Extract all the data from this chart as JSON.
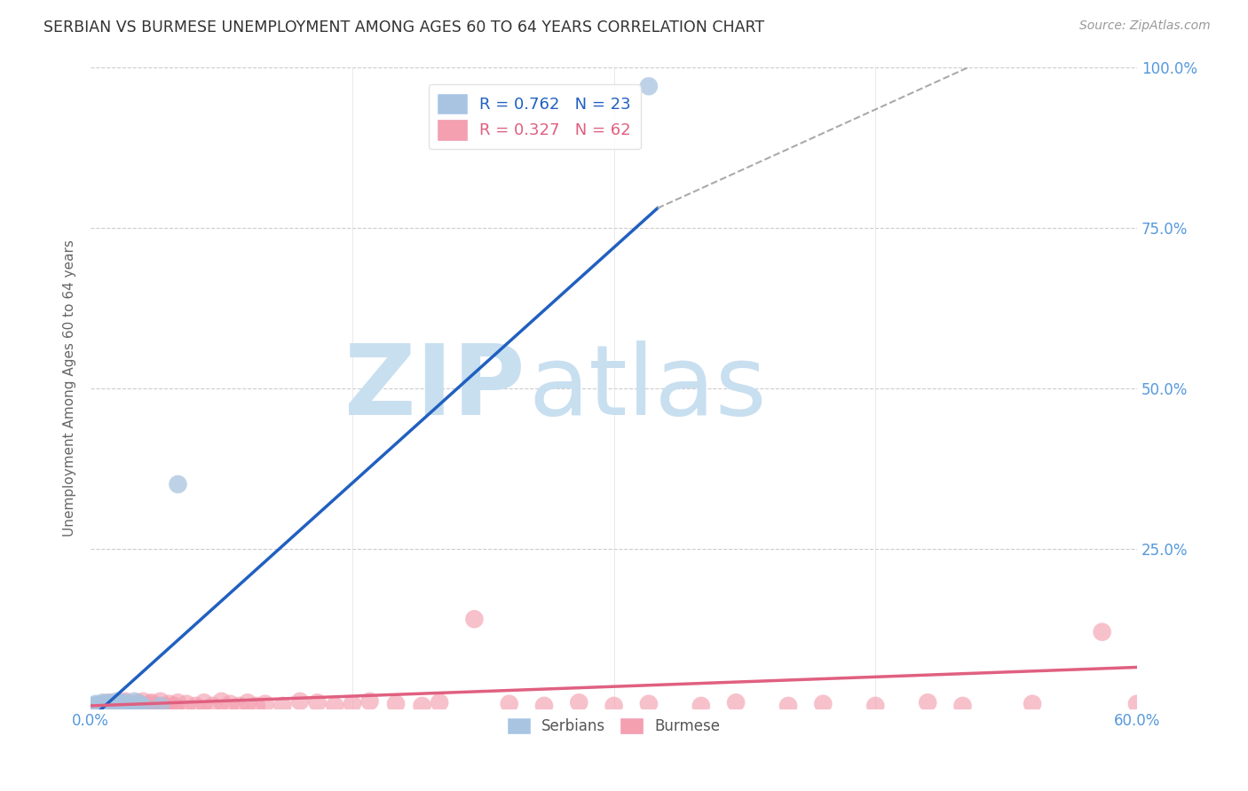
{
  "title": "SERBIAN VS BURMESE UNEMPLOYMENT AMONG AGES 60 TO 64 YEARS CORRELATION CHART",
  "source": "Source: ZipAtlas.com",
  "ylabel": "Unemployment Among Ages 60 to 64 years",
  "xlim": [
    0.0,
    0.6
  ],
  "ylim": [
    0.0,
    1.0
  ],
  "serbian_R": 0.762,
  "serbian_N": 23,
  "burmese_R": 0.327,
  "burmese_N": 62,
  "serbian_color": "#a8c4e0",
  "burmese_color": "#f4a0b0",
  "serbian_line_color": "#2060c0",
  "burmese_line_color": "#e06080",
  "watermark_zip": "ZIP",
  "watermark_atlas": "atlas",
  "watermark_color_zip": "#c8dff0",
  "watermark_color_atlas": "#c8dff0",
  "right_tick_color": "#5599dd",
  "bottom_tick_color": "#5599dd",
  "serbian_scatter_x": [
    0.002,
    0.003,
    0.004,
    0.005,
    0.006,
    0.007,
    0.008,
    0.009,
    0.01,
    0.011,
    0.012,
    0.013,
    0.015,
    0.016,
    0.018,
    0.02,
    0.022,
    0.025,
    0.028,
    0.03,
    0.04,
    0.05,
    0.32
  ],
  "serbian_scatter_y": [
    0.005,
    0.008,
    0.005,
    0.006,
    0.005,
    0.01,
    0.005,
    0.008,
    0.005,
    0.01,
    0.005,
    0.008,
    0.012,
    0.005,
    0.008,
    0.01,
    0.005,
    0.012,
    0.008,
    0.005,
    0.005,
    0.35,
    0.97
  ],
  "burmese_scatter_x": [
    0.002,
    0.003,
    0.005,
    0.007,
    0.009,
    0.01,
    0.012,
    0.014,
    0.015,
    0.017,
    0.018,
    0.02,
    0.022,
    0.024,
    0.025,
    0.027,
    0.028,
    0.03,
    0.032,
    0.034,
    0.035,
    0.038,
    0.04,
    0.042,
    0.045,
    0.048,
    0.05,
    0.055,
    0.06,
    0.065,
    0.07,
    0.075,
    0.08,
    0.085,
    0.09,
    0.095,
    0.1,
    0.11,
    0.12,
    0.13,
    0.14,
    0.15,
    0.16,
    0.175,
    0.19,
    0.2,
    0.22,
    0.24,
    0.26,
    0.28,
    0.3,
    0.32,
    0.35,
    0.37,
    0.4,
    0.42,
    0.45,
    0.48,
    0.5,
    0.54,
    0.58,
    0.6
  ],
  "burmese_scatter_y": [
    0.005,
    0.005,
    0.005,
    0.008,
    0.005,
    0.01,
    0.005,
    0.005,
    0.008,
    0.005,
    0.01,
    0.012,
    0.005,
    0.008,
    0.005,
    0.01,
    0.005,
    0.012,
    0.005,
    0.008,
    0.01,
    0.005,
    0.012,
    0.005,
    0.008,
    0.005,
    0.01,
    0.008,
    0.005,
    0.01,
    0.005,
    0.012,
    0.008,
    0.005,
    0.01,
    0.005,
    0.008,
    0.005,
    0.012,
    0.01,
    0.005,
    0.008,
    0.012,
    0.008,
    0.005,
    0.01,
    0.14,
    0.008,
    0.005,
    0.01,
    0.005,
    0.008,
    0.005,
    0.01,
    0.005,
    0.008,
    0.005,
    0.01,
    0.005,
    0.008,
    0.12,
    0.008
  ],
  "serbian_line_x0": 0.0,
  "serbian_line_y0": -0.015,
  "serbian_line_x1": 0.325,
  "serbian_line_y1": 0.78,
  "serbian_line_ext_x1": 0.52,
  "serbian_line_ext_y1": 1.02,
  "burmese_line_x0": 0.0,
  "burmese_line_y0": 0.005,
  "burmese_line_x1": 0.6,
  "burmese_line_y1": 0.065
}
